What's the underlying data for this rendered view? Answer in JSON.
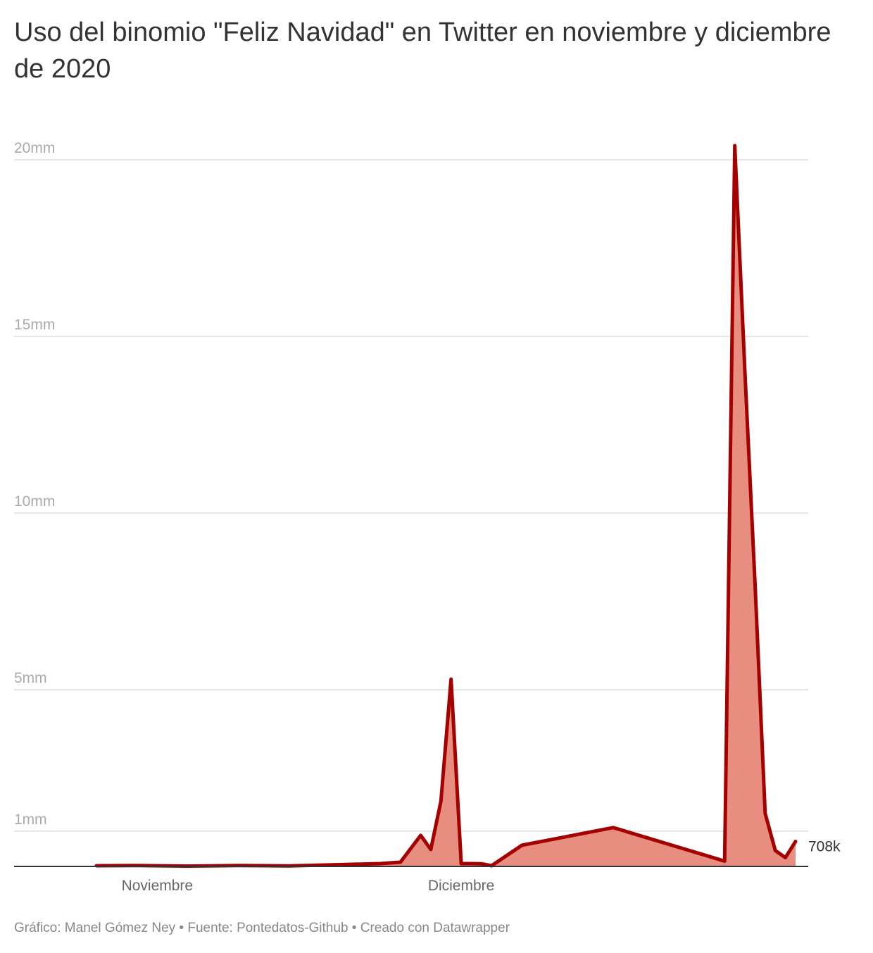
{
  "title": "Uso del binomio \"Feliz Navidad\" en Twitter en noviembre y diciembre de 2020",
  "footer": {
    "credit": "Gráfico: Manel Gómez Ney",
    "separator": " • ",
    "source": "Fuente: Pontedatos-Github",
    "tool": "Creado con Datawrapper"
  },
  "colors": {
    "line": "#a50000",
    "area": "#e88e80",
    "grid": "#dddddd",
    "baseline": "#333333"
  },
  "chart_data": {
    "type": "area",
    "title": "Uso del binomio \"Feliz Navidad\" en Twitter en noviembre y diciembre de 2020",
    "xlabel": "",
    "ylabel": "",
    "ylim": [
      0,
      20000000
    ],
    "yscale": "linear",
    "grid": true,
    "y_ticks": [
      {
        "value": 1000000,
        "label": "1mm"
      },
      {
        "value": 5000000,
        "label": "5mm"
      },
      {
        "value": 10000000,
        "label": "10mm"
      },
      {
        "value": 15000000,
        "label": "15mm"
      },
      {
        "value": 20000000,
        "label": "20mm"
      }
    ],
    "x_ticks": [
      {
        "date": "2020-11-01",
        "label": "Noviembre"
      },
      {
        "date": "2020-12-01",
        "label": "Diciembre"
      }
    ],
    "end_label": "708k",
    "series": [
      {
        "x": [
          "2020-10-26",
          "2020-10-30",
          "2020-11-04",
          "2020-11-09",
          "2020-11-14",
          "2020-11-19",
          "2020-11-23",
          "2020-11-25",
          "2020-11-27",
          "2020-11-28",
          "2020-11-29",
          "2020-11-30",
          "2020-12-01",
          "2020-12-02",
          "2020-12-03",
          "2020-12-04",
          "2020-12-07",
          "2020-12-16",
          "2020-12-27",
          "2020-12-28",
          "2020-12-29",
          "2020-12-30",
          "2020-12-31",
          "2021-01-01",
          "2021-01-02",
          "2021-01-03"
        ],
        "values": [
          20000,
          25000,
          10000,
          25000,
          15000,
          50000,
          80000,
          120000,
          880000,
          480000,
          1850000,
          5300000,
          80000,
          80000,
          75000,
          20000,
          600000,
          1100000,
          150000,
          20400000,
          14000000,
          8000000,
          1500000,
          450000,
          250000,
          708000
        ]
      }
    ]
  }
}
